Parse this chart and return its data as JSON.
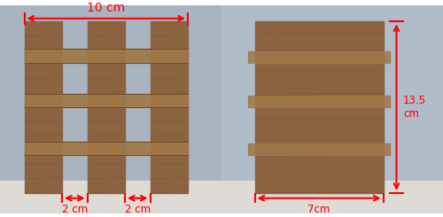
{
  "fig_width": 5.0,
  "fig_height": 2.45,
  "dpi": 100,
  "bg_color": "#ffffff",
  "annotation_color": "red",
  "left_bg": "#a8b4c0",
  "right_bg": "#b0bcc8",
  "floor_color": "#dedad6",
  "block_color": "#8B6340",
  "coir_dark": "#5a3a18",
  "coir_light": "#a07848",
  "coir_mid": "#7a5228",
  "label_10cm": "10 cm",
  "label_2cm_1": "2 cm",
  "label_2cm_2": "2 cm",
  "label_135cm": "13.5\ncm",
  "label_7cm": "7cm",
  "fs_large": 10,
  "fs_small": 8.5
}
